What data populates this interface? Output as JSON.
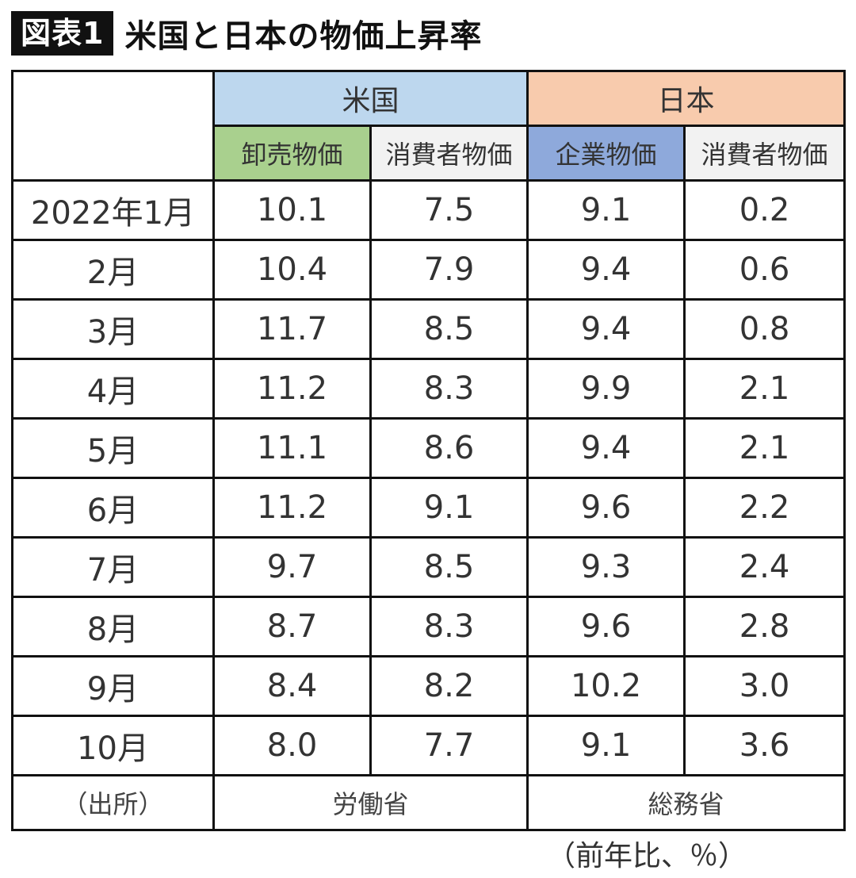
{
  "title": {
    "badge": "図表1",
    "text": "米国と日本の物価上昇率"
  },
  "chart_data": {
    "type": "table",
    "groups": [
      {
        "label": "米国",
        "color": "#bdd7ee"
      },
      {
        "label": "日本",
        "color": "#f8cbad"
      }
    ],
    "columns": [
      {
        "label": "卸売物価",
        "color": "#a9d08e"
      },
      {
        "label": "消費者物価",
        "color": "#f2f2f2"
      },
      {
        "label": "企業物価",
        "color": "#8ea9db"
      },
      {
        "label": "消費者物価",
        "color": "#f2f2f2"
      }
    ],
    "rows": [
      {
        "label": "2022年1月",
        "values": [
          "10.1",
          "7.5",
          "9.1",
          "0.2"
        ]
      },
      {
        "label": "2月",
        "values": [
          "10.4",
          "7.9",
          "9.4",
          "0.6"
        ]
      },
      {
        "label": "3月",
        "values": [
          "11.7",
          "8.5",
          "9.4",
          "0.8"
        ]
      },
      {
        "label": "4月",
        "values": [
          "11.2",
          "8.3",
          "9.9",
          "2.1"
        ]
      },
      {
        "label": "5月",
        "values": [
          "11.1",
          "8.6",
          "9.4",
          "2.1"
        ]
      },
      {
        "label": "6月",
        "values": [
          "11.2",
          "9.1",
          "9.6",
          "2.2"
        ]
      },
      {
        "label": "7月",
        "values": [
          "9.7",
          "8.5",
          "9.3",
          "2.4"
        ]
      },
      {
        "label": "8月",
        "values": [
          "8.7",
          "8.3",
          "9.6",
          "2.8"
        ]
      },
      {
        "label": "9月",
        "values": [
          "8.4",
          "8.2",
          "10.2",
          "3.0"
        ]
      },
      {
        "label": "10月",
        "values": [
          "8.0",
          "7.7",
          "9.1",
          "3.6"
        ]
      }
    ],
    "source": {
      "label": "（出所）",
      "us": "労働省",
      "jp": "総務省"
    },
    "unit_note": "（前年比、％）"
  }
}
